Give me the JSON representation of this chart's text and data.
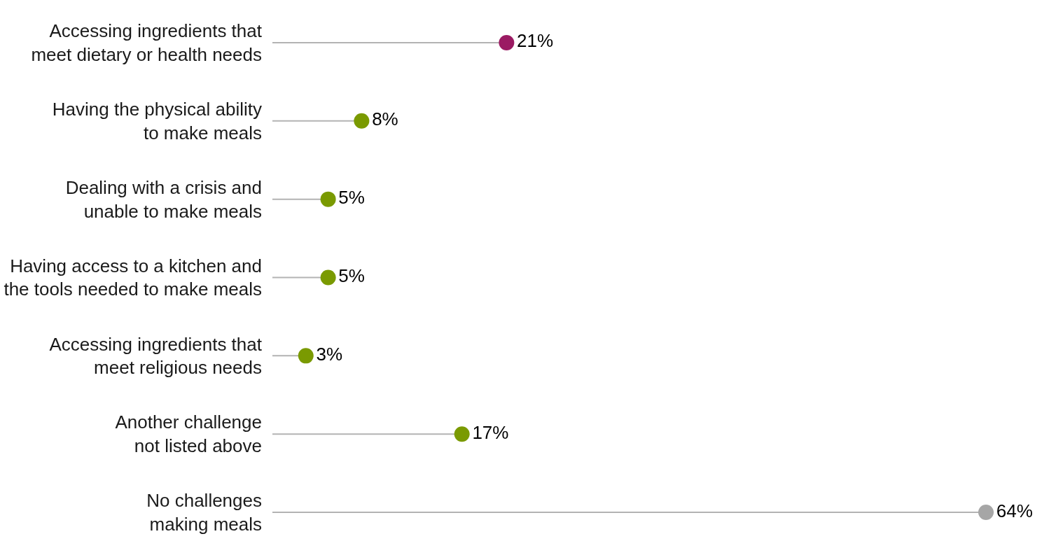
{
  "chart_data": {
    "type": "lollipop",
    "orientation": "horizontal",
    "data_labels": true,
    "value_labels": [
      "21%",
      "8%",
      "5%",
      "5%",
      "3%",
      "17%",
      "64%"
    ],
    "categories": [
      "Accessing ingredients that\nmeet dietary or health needs",
      "Having the physical ability\nto make meals",
      "Dealing with a crisis and\nunable to make meals",
      "Having access to a kitchen and\nthe tools needed to make meals",
      "Accessing ingredients that\nmeet religious needs",
      "Another challenge\nnot listed above",
      "No challenges\nmaking meals"
    ],
    "values": [
      21,
      8,
      5,
      5,
      3,
      17,
      64
    ],
    "colors": [
      "#9b1b63",
      "#7a9a01",
      "#7a9a01",
      "#7a9a01",
      "#7a9a01",
      "#7a9a01",
      "#a6a6a6"
    ]
  }
}
